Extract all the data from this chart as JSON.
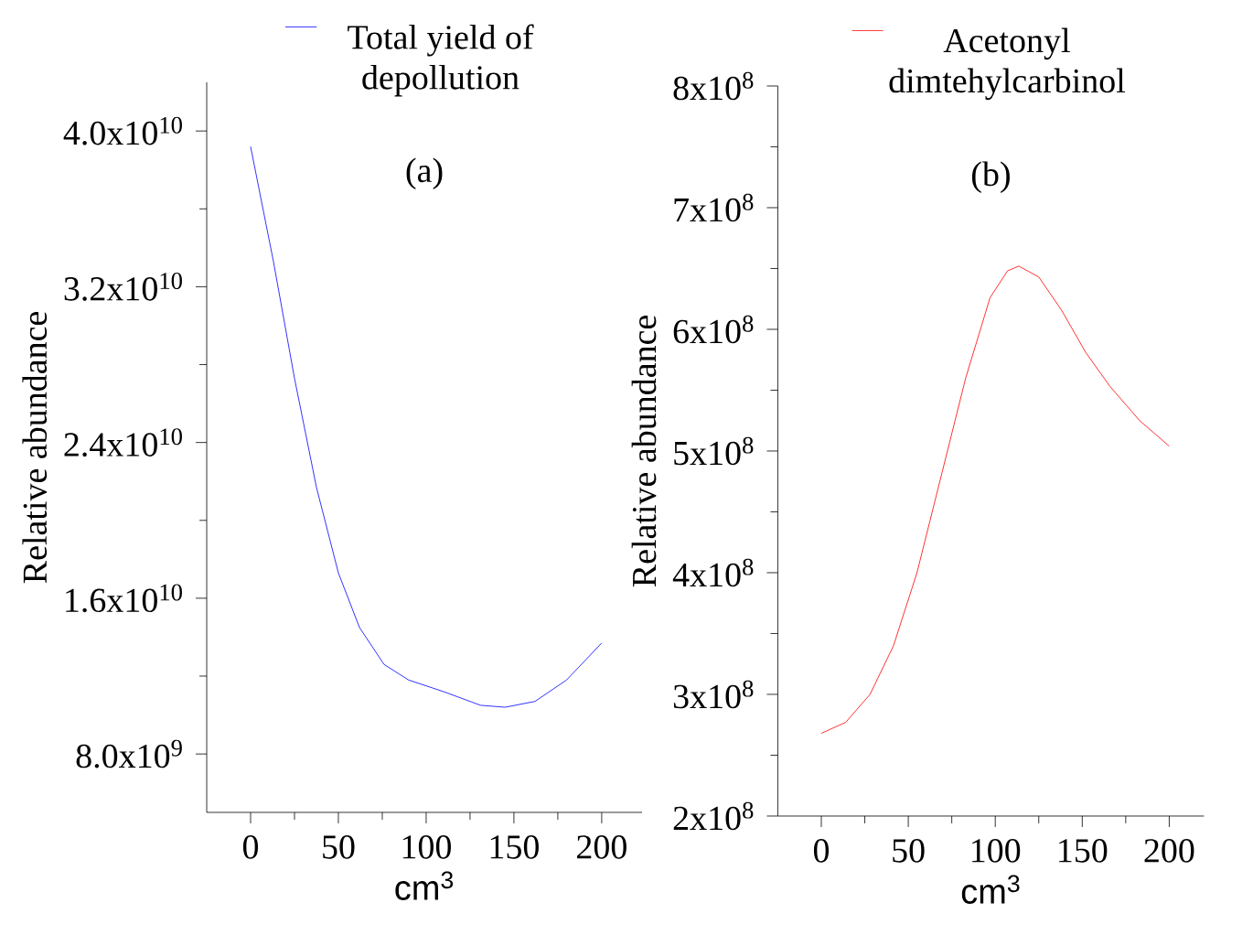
{
  "chart_data": [
    {
      "type": "line",
      "title": "(a)",
      "xlabel": "cm$^{3}$",
      "ylabel": "Relative abundance",
      "legend": "top",
      "x": [
        0,
        13,
        25,
        37.5,
        50,
        62,
        76,
        90,
        110,
        131,
        145,
        162,
        180,
        200
      ],
      "series": [
        {
          "name": "Total yield of depollution",
          "color": "#0000ff",
          "values": [
            39200000000.0,
            33300000000.0,
            27300000000.0,
            21700000000.0,
            17300000000.0,
            14500000000.0,
            12600000000.0,
            11800000000.0,
            11200000000.0,
            10500000000.0,
            10400000000.0,
            10700000000.0,
            11800000000.0,
            13700000000.0
          ]
        }
      ],
      "xlim": [
        -25,
        223
      ],
      "ylim": [
        5000000000.0,
        42500000000.0
      ],
      "xticks": [
        0,
        50,
        100,
        150,
        200
      ],
      "yticks": [
        {
          "value": 8000000000.0,
          "label": "8.0x10$^{9}$"
        },
        {
          "value": 16000000000.0,
          "label": "1.6x10$^{10}$"
        },
        {
          "value": 24000000000.0,
          "label": "2.4x10$^{10}$"
        },
        {
          "value": 32000000000.0,
          "label": "3.2x10$^{10}$"
        },
        {
          "value": 40000000000.0,
          "label": "4.0x10$^{10}$"
        }
      ]
    },
    {
      "type": "line",
      "title": "(b)",
      "xlabel": "cm$^{3}$",
      "ylabel": "Relative abundance",
      "legend": "top",
      "x": [
        0,
        14,
        28,
        41.5,
        55,
        69,
        83,
        97,
        107,
        113.5,
        125,
        138,
        152,
        166,
        183,
        200
      ],
      "series": [
        {
          "name": "Acetonyl dimtehylcarbinol",
          "color": "#ff0000",
          "values": [
            268000000.0,
            277000000.0,
            300000000.0,
            340000000.0,
            400000000.0,
            480000000.0,
            560000000.0,
            626000000.0,
            648000000.0,
            652000000.0,
            643000000.0,
            616000000.0,
            581000000.0,
            553000000.0,
            525000000.0,
            504000000.0
          ]
        }
      ],
      "xlim": [
        -25,
        220
      ],
      "ylim": [
        200000000.0,
        800000000.0
      ],
      "xticks": [
        0,
        50,
        100,
        150,
        200
      ],
      "yticks": [
        {
          "value": 200000000.0,
          "label": "2x10$^{8}$"
        },
        {
          "value": 300000000.0,
          "label": "3x10$^{8}$"
        },
        {
          "value": 400000000.0,
          "label": "4x10$^{8}$"
        },
        {
          "value": 500000000.0,
          "label": "5x10$^{8}$"
        },
        {
          "value": 600000000.0,
          "label": "6x10$^{8}$"
        },
        {
          "value": 700000000.0,
          "label": "7x10$^{8}$"
        },
        {
          "value": 800000000.0,
          "label": "8x10$^{8}$"
        }
      ]
    }
  ]
}
